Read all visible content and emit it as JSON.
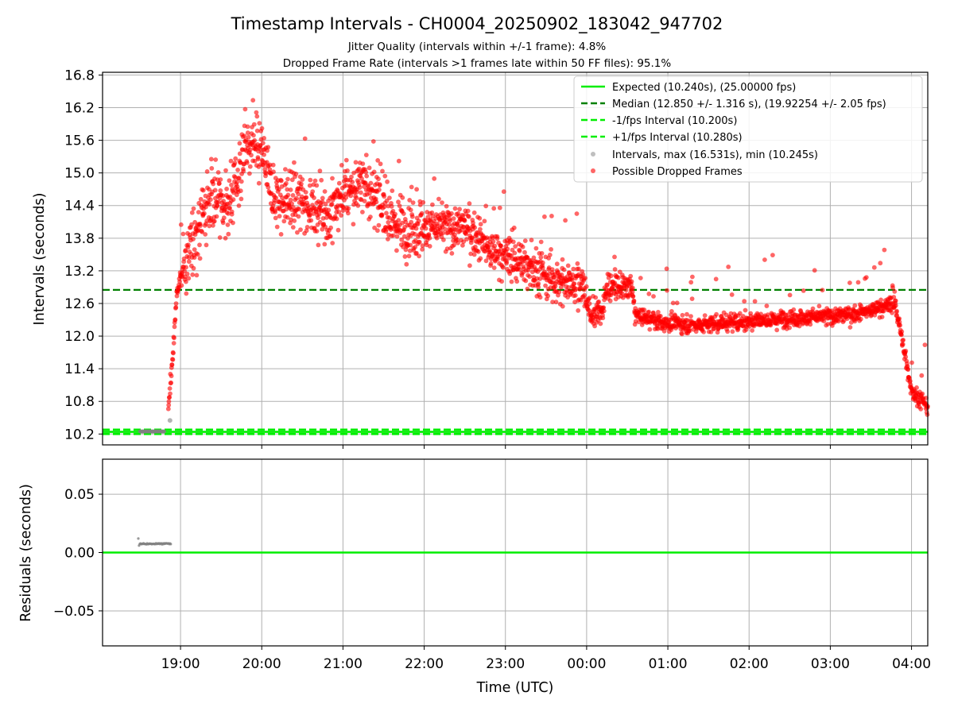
{
  "colors": {
    "expected": "#00ee00",
    "median": "#008000",
    "bounds": "#00ee00",
    "intervals": "#808080",
    "dropped": "#ff0000",
    "grid": "#b0b0b0"
  },
  "chart_data": [
    {
      "type": "scatter",
      "title": "Timestamp Intervals - CH0004_20250902_183042_947702",
      "subtitle_lines": [
        "Jitter Quality (intervals within +/-1 frame): 4.8%",
        "Dropped Frame Rate (intervals >1 frames late within 50 FF files): 95.1%"
      ],
      "xlabel": "",
      "ylabel": "Intervals (seconds)",
      "ylim": [
        10.0,
        16.85
      ],
      "yticks": [
        10.2,
        10.8,
        11.4,
        12.0,
        12.6,
        13.2,
        13.8,
        14.4,
        15.0,
        15.6,
        16.2,
        16.8
      ],
      "ytick_labels": [
        "10.2",
        "10.8",
        "11.4",
        "12.0",
        "12.6",
        "13.2",
        "13.8",
        "14.4",
        "15.0",
        "15.6",
        "16.2",
        "16.8"
      ],
      "xlim_hours_utc": [
        18.04,
        28.2
      ],
      "grid": true,
      "legend_position": "top-right",
      "legend": [
        "Expected (10.240s), (25.00000 fps)",
        "Median (12.850 +/- 1.316 s), (19.92254 +/- 2.05 fps)",
        "-1/fps Interval (10.200s)",
        "+1/fps Interval (10.280s)",
        "Intervals, max (16.531s), min (10.245s)",
        "Possible Dropped Frames"
      ],
      "reference_lines": {
        "expected": 10.24,
        "median": 12.85,
        "minus_1fps": 10.2,
        "plus_1fps": 10.28
      },
      "interval_range": {
        "max": 16.531,
        "min": 10.245
      },
      "series": [
        {
          "name": "Possible Dropped Frames",
          "kind": "trend",
          "points": [
            [
              18.85,
              10.6
            ],
            [
              18.9,
              11.5
            ],
            [
              18.95,
              12.7
            ],
            [
              19.0,
              13.1
            ],
            [
              19.2,
              13.9
            ],
            [
              19.4,
              14.6
            ],
            [
              19.6,
              14.3
            ],
            [
              19.8,
              15.5
            ],
            [
              20.0,
              15.4
            ],
            [
              20.15,
              14.5
            ],
            [
              20.5,
              14.5
            ],
            [
              20.8,
              14.2
            ],
            [
              21.0,
              14.6
            ],
            [
              21.3,
              14.8
            ],
            [
              21.6,
              14.1
            ],
            [
              21.9,
              14.0
            ],
            [
              22.2,
              14.0
            ],
            [
              22.5,
              14.0
            ],
            [
              22.8,
              13.6
            ],
            [
              23.1,
              13.4
            ],
            [
              23.3,
              13.3
            ],
            [
              23.5,
              13.1
            ],
            [
              23.7,
              13.0
            ],
            [
              23.95,
              13.0
            ],
            [
              24.05,
              12.35
            ],
            [
              24.2,
              12.5
            ],
            [
              24.25,
              12.9
            ],
            [
              24.55,
              12.9
            ],
            [
              24.6,
              12.4
            ],
            [
              24.9,
              12.25
            ],
            [
              25.3,
              12.2
            ],
            [
              25.7,
              12.25
            ],
            [
              26.2,
              12.3
            ],
            [
              26.8,
              12.35
            ],
            [
              27.3,
              12.4
            ],
            [
              27.8,
              12.6
            ],
            [
              27.9,
              11.8
            ],
            [
              28.0,
              11.0
            ],
            [
              28.2,
              10.7
            ]
          ]
        },
        {
          "name": "Intervals",
          "kind": "points",
          "points": [
            [
              18.5,
              10.247
            ],
            [
              18.6,
              10.247
            ],
            [
              18.7,
              10.247
            ],
            [
              18.8,
              10.248
            ],
            [
              18.87,
              10.45
            ]
          ]
        }
      ]
    },
    {
      "type": "scatter",
      "xlabel": "Time (UTC)",
      "ylabel": "Residuals (seconds)",
      "ylim": [
        -0.08,
        0.08
      ],
      "yticks": [
        0.05,
        0.0,
        -0.05
      ],
      "ytick_labels": [
        "0.05",
        "0.00",
        "−0.05"
      ],
      "xticks_hours_utc": [
        19,
        20,
        21,
        22,
        23,
        24,
        25,
        26,
        27,
        28
      ],
      "xtick_labels": [
        "19:00",
        "20:00",
        "21:00",
        "22:00",
        "23:00",
        "00:00",
        "01:00",
        "02:00",
        "03:00",
        "04:00"
      ],
      "grid": true,
      "reference_line": 0.0,
      "series": [
        {
          "name": "Residuals",
          "range_hours_utc": [
            18.48,
            18.88
          ],
          "value_min": 0.006,
          "value_max": 0.012,
          "typical": 0.0075
        }
      ]
    }
  ]
}
